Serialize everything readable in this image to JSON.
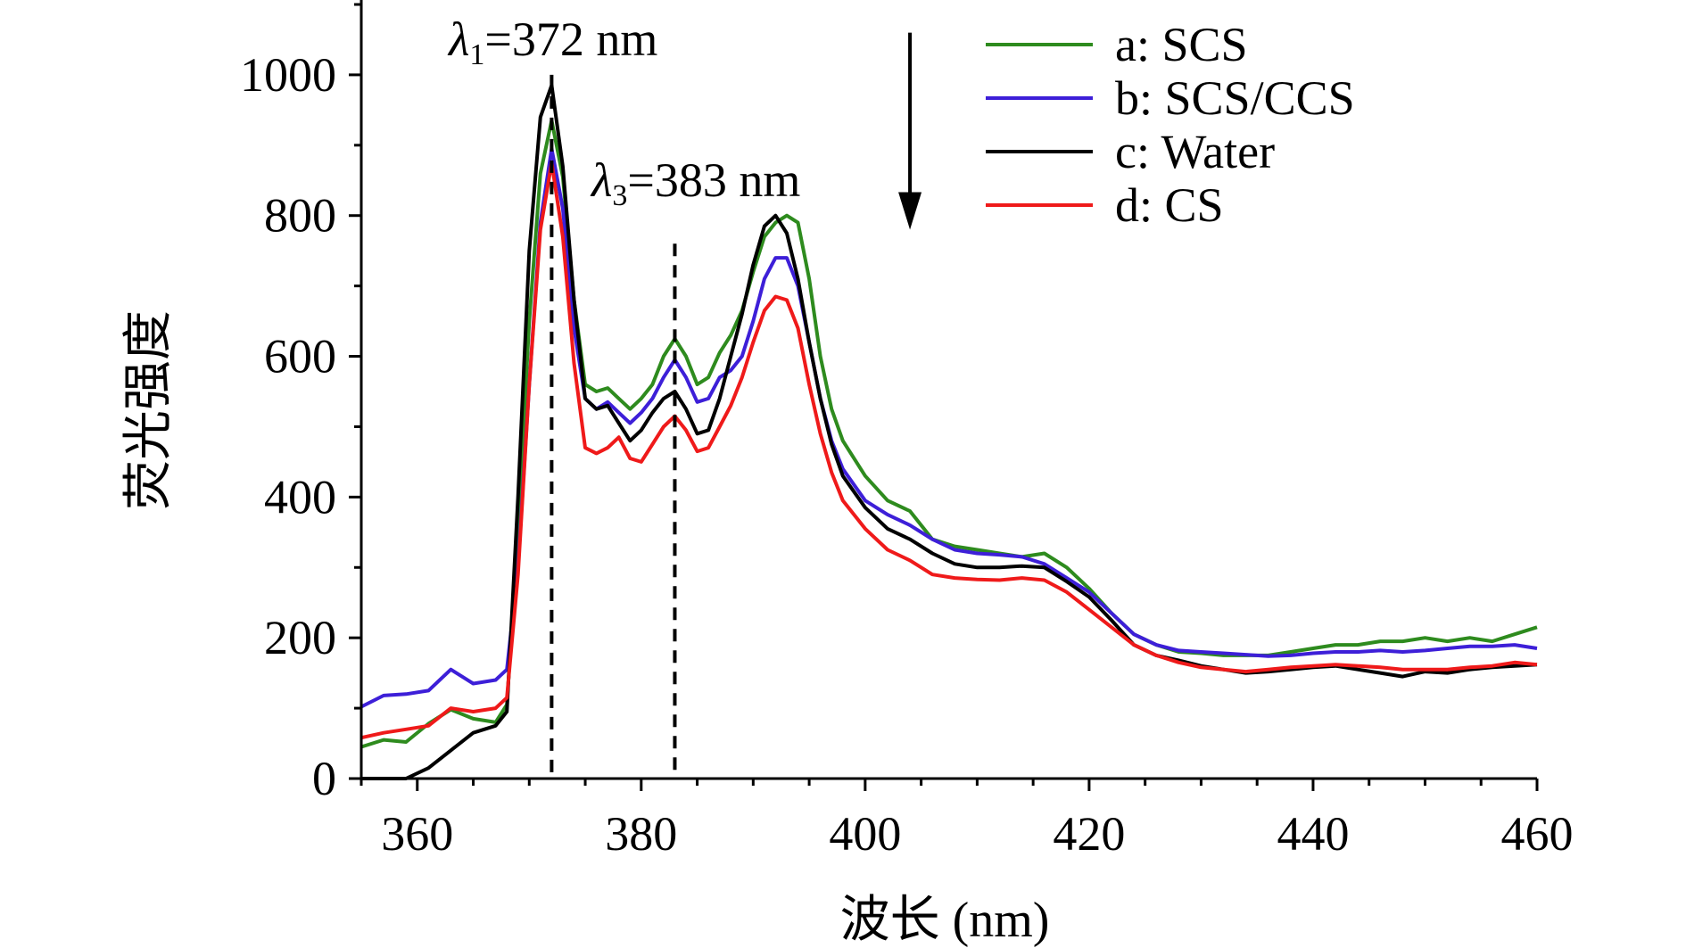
{
  "chart_data": {
    "type": "line",
    "title": "",
    "xlabel": "波长 (nm)",
    "ylabel": "荧光强度",
    "xlim": [
      355,
      460
    ],
    "ylim": [
      0,
      1100
    ],
    "x_ticks": [
      360,
      380,
      400,
      420,
      440,
      460
    ],
    "y_ticks": [
      0,
      200,
      400,
      600,
      800,
      1000
    ],
    "grid": false,
    "legend_position": "top-right",
    "annotations": [
      {
        "symbol": "λ",
        "subscript": "1",
        "text": "=372 nm",
        "x": 372
      },
      {
        "symbol": "λ",
        "subscript": "3",
        "text": "=383 nm",
        "x": 383
      }
    ],
    "arrow": {
      "x": 404,
      "y_from": 1060,
      "y_to": 780,
      "direction": "down"
    },
    "series": [
      {
        "name": "a: SCS",
        "color": "#2e8b1e",
        "x": [
          355,
          357,
          359,
          361,
          363,
          365,
          367,
          368,
          369,
          370,
          371,
          372,
          373,
          374,
          375,
          376,
          377,
          378,
          379,
          380,
          381,
          382,
          383,
          384,
          385,
          386,
          387,
          388,
          389,
          390,
          391,
          392,
          393,
          394,
          395,
          396,
          397,
          398,
          400,
          402,
          404,
          406,
          408,
          410,
          412,
          414,
          416,
          418,
          420,
          422,
          424,
          426,
          428,
          430,
          432,
          434,
          436,
          438,
          440,
          442,
          444,
          446,
          448,
          450,
          452,
          454,
          456,
          458,
          460
        ],
        "y": [
          45,
          55,
          52,
          78,
          98,
          85,
          80,
          105,
          350,
          650,
          860,
          935,
          855,
          680,
          560,
          550,
          555,
          540,
          525,
          540,
          560,
          600,
          625,
          600,
          560,
          570,
          605,
          630,
          665,
          720,
          770,
          790,
          800,
          790,
          710,
          600,
          525,
          480,
          430,
          395,
          380,
          340,
          330,
          325,
          320,
          315,
          320,
          300,
          270,
          235,
          205,
          190,
          180,
          178,
          175,
          175,
          175,
          180,
          185,
          190,
          190,
          195,
          195,
          200,
          195,
          200,
          195,
          205,
          215
        ]
      },
      {
        "name": "b: SCS/CCS",
        "color": "#3d1fd8",
        "x": [
          355,
          357,
          359,
          361,
          363,
          365,
          367,
          368,
          369,
          370,
          371,
          372,
          373,
          374,
          375,
          376,
          377,
          378,
          379,
          380,
          381,
          382,
          383,
          384,
          385,
          386,
          387,
          388,
          389,
          390,
          391,
          392,
          393,
          394,
          395,
          396,
          397,
          398,
          400,
          402,
          404,
          406,
          408,
          410,
          412,
          414,
          416,
          418,
          420,
          422,
          424,
          426,
          428,
          430,
          432,
          434,
          436,
          438,
          440,
          442,
          444,
          446,
          448,
          450,
          452,
          454,
          456,
          458,
          460
        ],
        "y": [
          102,
          118,
          120,
          125,
          155,
          135,
          140,
          155,
          300,
          560,
          790,
          895,
          810,
          640,
          540,
          525,
          535,
          520,
          505,
          520,
          540,
          570,
          595,
          570,
          535,
          540,
          570,
          580,
          600,
          650,
          710,
          740,
          740,
          700,
          620,
          540,
          480,
          440,
          395,
          375,
          360,
          340,
          325,
          320,
          318,
          315,
          305,
          285,
          265,
          235,
          205,
          190,
          182,
          180,
          178,
          176,
          174,
          175,
          178,
          180,
          180,
          182,
          180,
          182,
          185,
          188,
          188,
          190,
          185
        ]
      },
      {
        "name": "c: Water",
        "color": "#000000",
        "x": [
          355,
          357,
          359,
          361,
          363,
          365,
          367,
          368,
          369,
          370,
          371,
          372,
          373,
          374,
          375,
          376,
          377,
          378,
          379,
          380,
          381,
          382,
          383,
          384,
          385,
          386,
          387,
          388,
          389,
          390,
          391,
          392,
          393,
          394,
          395,
          396,
          397,
          398,
          400,
          402,
          404,
          406,
          408,
          410,
          412,
          414,
          416,
          418,
          420,
          422,
          424,
          426,
          428,
          430,
          432,
          434,
          436,
          438,
          440,
          442,
          444,
          446,
          448,
          450,
          452,
          454,
          456,
          458,
          460
        ],
        "y": [
          0,
          0,
          0,
          15,
          40,
          65,
          75,
          95,
          400,
          750,
          940,
          985,
          870,
          680,
          540,
          525,
          530,
          505,
          480,
          495,
          520,
          540,
          550,
          525,
          490,
          495,
          540,
          600,
          660,
          730,
          785,
          800,
          775,
          710,
          620,
          540,
          475,
          430,
          385,
          355,
          340,
          320,
          305,
          300,
          300,
          302,
          300,
          280,
          258,
          225,
          190,
          175,
          168,
          160,
          155,
          150,
          152,
          155,
          158,
          160,
          155,
          150,
          145,
          152,
          150,
          155,
          158,
          160,
          162
        ]
      },
      {
        "name": "d: CS",
        "color": "#ef1a1a",
        "x": [
          355,
          357,
          359,
          361,
          363,
          365,
          367,
          368,
          369,
          370,
          371,
          372,
          373,
          374,
          375,
          376,
          377,
          378,
          379,
          380,
          381,
          382,
          383,
          384,
          385,
          386,
          387,
          388,
          389,
          390,
          391,
          392,
          393,
          394,
          395,
          396,
          397,
          398,
          400,
          402,
          404,
          406,
          408,
          410,
          412,
          414,
          416,
          418,
          420,
          422,
          424,
          426,
          428,
          430,
          432,
          434,
          436,
          438,
          440,
          442,
          444,
          446,
          448,
          450,
          452,
          454,
          456,
          458,
          460
        ],
        "y": [
          58,
          65,
          70,
          75,
          100,
          95,
          100,
          115,
          290,
          560,
          780,
          875,
          770,
          590,
          470,
          462,
          470,
          485,
          455,
          450,
          475,
          500,
          515,
          495,
          465,
          470,
          500,
          530,
          570,
          620,
          665,
          685,
          680,
          640,
          560,
          490,
          435,
          395,
          355,
          325,
          310,
          290,
          285,
          283,
          282,
          285,
          282,
          265,
          240,
          215,
          190,
          175,
          165,
          158,
          155,
          152,
          155,
          158,
          160,
          162,
          160,
          158,
          155,
          155,
          155,
          158,
          160,
          165,
          162
        ]
      }
    ]
  }
}
